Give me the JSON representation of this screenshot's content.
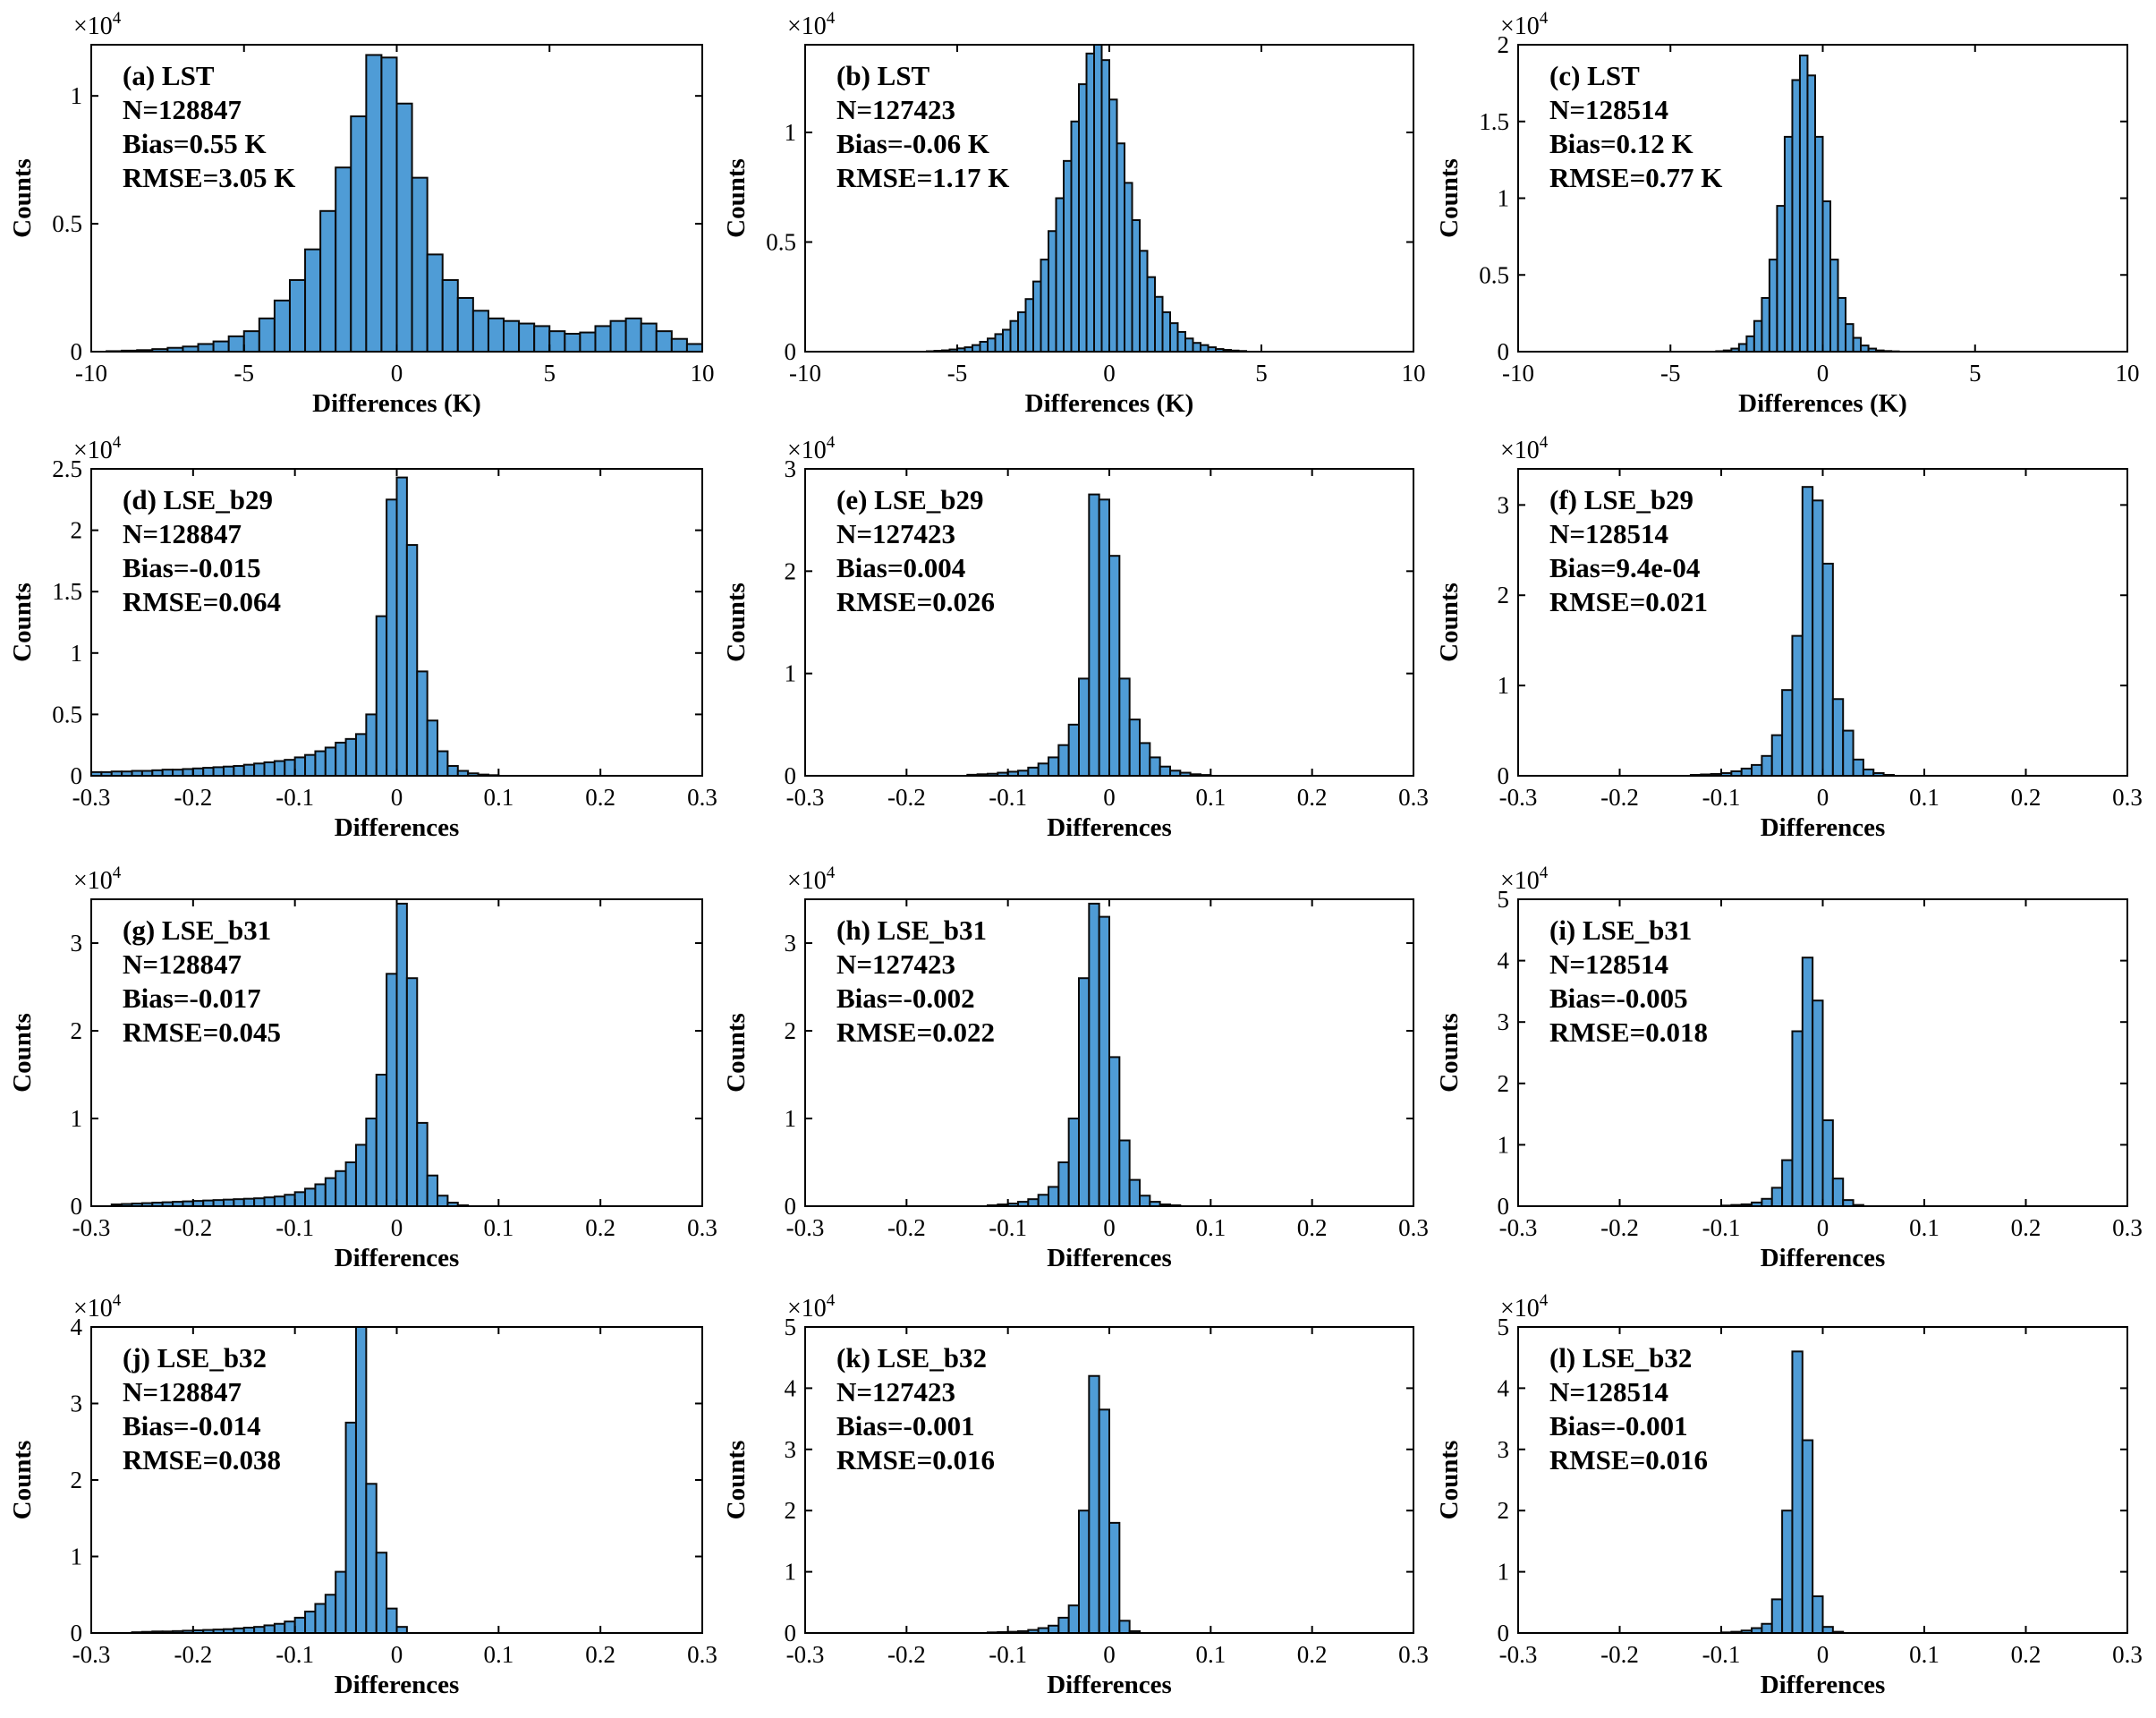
{
  "figure": {
    "background": "#ffffff",
    "bar_color": "#4f9cd6",
    "edge_color": "#0a0a0a"
  },
  "chart_data": [
    {
      "id": "a",
      "type": "bar",
      "ylabel": "Counts",
      "xlabel": "Differences (K)",
      "multiplier": "×10",
      "multiplier_exp": "4",
      "xlim": [
        -10,
        10
      ],
      "ylim": [
        0,
        1.2
      ],
      "xticks": [
        -10,
        -5,
        0,
        5,
        10
      ],
      "xtick_labels": [
        "-10",
        "-5",
        "0",
        "5",
        "10"
      ],
      "yticks": [
        0,
        0.5,
        1
      ],
      "ytick_labels": [
        "0",
        "0.5",
        "1"
      ],
      "bin_start": -9.5,
      "bin_width": 0.5,
      "annotation": [
        "(a) LST",
        "N=128847",
        "Bias=0.55 K",
        "RMSE=3.05 K"
      ],
      "values": [
        0.002,
        0.004,
        0.006,
        0.01,
        0.015,
        0.02,
        0.03,
        0.04,
        0.06,
        0.08,
        0.13,
        0.2,
        0.28,
        0.4,
        0.55,
        0.72,
        0.92,
        1.16,
        1.15,
        0.97,
        0.68,
        0.38,
        0.28,
        0.21,
        0.16,
        0.13,
        0.12,
        0.11,
        0.1,
        0.08,
        0.07,
        0.075,
        0.1,
        0.12,
        0.13,
        0.11,
        0.08,
        0.05,
        0.03
      ]
    },
    {
      "id": "b",
      "type": "bar",
      "ylabel": "Counts",
      "xlabel": "Differences (K)",
      "multiplier": "×10",
      "multiplier_exp": "4",
      "xlim": [
        -10,
        10
      ],
      "ylim": [
        0,
        1.4
      ],
      "xticks": [
        -10,
        -5,
        0,
        5,
        10
      ],
      "xtick_labels": [
        "-10",
        "-5",
        "0",
        "5",
        "10"
      ],
      "yticks": [
        0,
        0.5,
        1
      ],
      "ytick_labels": [
        "0",
        "0.5",
        "1"
      ],
      "bin_start": -6,
      "bin_width": 0.25,
      "annotation": [
        "(b) LST",
        "N=127423",
        "Bias=-0.06 K",
        "RMSE=1.17 K"
      ],
      "values": [
        0.002,
        0.004,
        0.006,
        0.01,
        0.015,
        0.02,
        0.03,
        0.045,
        0.06,
        0.08,
        0.1,
        0.14,
        0.18,
        0.24,
        0.32,
        0.42,
        0.55,
        0.7,
        0.87,
        1.05,
        1.22,
        1.36,
        1.4,
        1.33,
        1.15,
        0.95,
        0.77,
        0.6,
        0.46,
        0.34,
        0.25,
        0.18,
        0.13,
        0.09,
        0.06,
        0.04,
        0.03,
        0.02,
        0.012,
        0.008,
        0.005,
        0.003
      ]
    },
    {
      "id": "c",
      "type": "bar",
      "ylabel": "Counts",
      "xlabel": "Differences (K)",
      "multiplier": "×10",
      "multiplier_exp": "4",
      "xlim": [
        -10,
        10
      ],
      "ylim": [
        0,
        2
      ],
      "xticks": [
        -10,
        -5,
        0,
        5,
        10
      ],
      "xtick_labels": [
        "-10",
        "-5",
        "0",
        "5",
        "10"
      ],
      "yticks": [
        0,
        0.5,
        1,
        1.5,
        2
      ],
      "ytick_labels": [
        "0",
        "0.5",
        "1",
        "1.5",
        "2"
      ],
      "bin_start": -3.5,
      "bin_width": 0.25,
      "annotation": [
        "(c) LST",
        "N=128514",
        "Bias=0.12 K",
        "RMSE=0.77 K"
      ],
      "values": [
        0.003,
        0.008,
        0.02,
        0.05,
        0.1,
        0.2,
        0.35,
        0.6,
        0.95,
        1.4,
        1.77,
        1.93,
        1.8,
        1.4,
        0.98,
        0.6,
        0.35,
        0.18,
        0.09,
        0.04,
        0.02,
        0.008,
        0.004,
        0.002
      ]
    },
    {
      "id": "d",
      "type": "bar",
      "ylabel": "Counts",
      "xlabel": "Differences",
      "multiplier": "×10",
      "multiplier_exp": "4",
      "xlim": [
        -0.3,
        0.3
      ],
      "ylim": [
        0,
        2.5
      ],
      "xticks": [
        -0.3,
        -0.2,
        -0.1,
        0,
        0.1,
        0.2,
        0.3
      ],
      "xtick_labels": [
        "-0.3",
        "-0.2",
        "-0.1",
        "0",
        "0.1",
        "0.2",
        "0.3"
      ],
      "yticks": [
        0,
        0.5,
        1,
        1.5,
        2,
        2.5
      ],
      "ytick_labels": [
        "0",
        "0.5",
        "1",
        "1.5",
        "2",
        "2.5"
      ],
      "bin_start": -0.3,
      "bin_width": 0.01,
      "annotation": [
        "(d) LSE_b29",
        "N=128847",
        "Bias=-0.015",
        "RMSE=0.064"
      ],
      "values": [
        0.03,
        0.03,
        0.035,
        0.035,
        0.04,
        0.04,
        0.045,
        0.05,
        0.05,
        0.055,
        0.06,
        0.065,
        0.07,
        0.075,
        0.08,
        0.09,
        0.1,
        0.11,
        0.12,
        0.13,
        0.15,
        0.17,
        0.2,
        0.23,
        0.27,
        0.3,
        0.34,
        0.5,
        1.3,
        2.25,
        2.43,
        1.88,
        0.85,
        0.45,
        0.2,
        0.08,
        0.04,
        0.02,
        0.01,
        0.005
      ]
    },
    {
      "id": "e",
      "type": "bar",
      "ylabel": "Counts",
      "xlabel": "Differences",
      "multiplier": "×10",
      "multiplier_exp": "4",
      "xlim": [
        -0.3,
        0.3
      ],
      "ylim": [
        0,
        3
      ],
      "xticks": [
        -0.3,
        -0.2,
        -0.1,
        0,
        0.1,
        0.2,
        0.3
      ],
      "xtick_labels": [
        "-0.3",
        "-0.2",
        "-0.1",
        "0",
        "0.1",
        "0.2",
        "0.3"
      ],
      "yticks": [
        0,
        1,
        2,
        3
      ],
      "ytick_labels": [
        "0",
        "1",
        "2",
        "3"
      ],
      "bin_start": -0.14,
      "bin_width": 0.01,
      "annotation": [
        "(e) LSE_b29",
        "N=127423",
        "Bias=0.004",
        "RMSE=0.026"
      ],
      "values": [
        0.01,
        0.015,
        0.02,
        0.03,
        0.04,
        0.05,
        0.08,
        0.12,
        0.18,
        0.3,
        0.5,
        0.95,
        2.75,
        2.7,
        2.15,
        0.95,
        0.55,
        0.32,
        0.18,
        0.09,
        0.05,
        0.03,
        0.015,
        0.008
      ]
    },
    {
      "id": "f",
      "type": "bar",
      "ylabel": "Counts",
      "xlabel": "Differences",
      "multiplier": "×10",
      "multiplier_exp": "4",
      "xlim": [
        -0.3,
        0.3
      ],
      "ylim": [
        0,
        3.4
      ],
      "xticks": [
        -0.3,
        -0.2,
        -0.1,
        0,
        0.1,
        0.2,
        0.3
      ],
      "xtick_labels": [
        "-0.3",
        "-0.2",
        "-0.1",
        "0",
        "0.1",
        "0.2",
        "0.3"
      ],
      "yticks": [
        0,
        1,
        2,
        3
      ],
      "ytick_labels": [
        "0",
        "1",
        "2",
        "3"
      ],
      "bin_start": -0.13,
      "bin_width": 0.01,
      "annotation": [
        "(f) LSE_b29",
        "N=128514",
        "Bias=9.4e-04",
        "RMSE=0.021"
      ],
      "values": [
        0.01,
        0.015,
        0.02,
        0.03,
        0.05,
        0.08,
        0.12,
        0.22,
        0.45,
        0.95,
        1.55,
        3.2,
        3.05,
        2.35,
        0.85,
        0.5,
        0.18,
        0.07,
        0.03,
        0.01
      ]
    },
    {
      "id": "g",
      "type": "bar",
      "ylabel": "Counts",
      "xlabel": "Differences",
      "multiplier": "×10",
      "multiplier_exp": "4",
      "xlim": [
        -0.3,
        0.3
      ],
      "ylim": [
        0,
        3.5
      ],
      "xticks": [
        -0.3,
        -0.2,
        -0.1,
        0,
        0.1,
        0.2,
        0.3
      ],
      "xtick_labels": [
        "-0.3",
        "-0.2",
        "-0.1",
        "0",
        "0.1",
        "0.2",
        "0.3"
      ],
      "yticks": [
        0,
        1,
        2,
        3
      ],
      "ytick_labels": [
        "0",
        "1",
        "2",
        "3"
      ],
      "bin_start": -0.28,
      "bin_width": 0.01,
      "annotation": [
        "(g) LSE_b31",
        "N=128847",
        "Bias=-0.017",
        "RMSE=0.045"
      ],
      "values": [
        0.02,
        0.025,
        0.03,
        0.035,
        0.04,
        0.045,
        0.05,
        0.055,
        0.06,
        0.065,
        0.07,
        0.075,
        0.08,
        0.085,
        0.09,
        0.1,
        0.11,
        0.13,
        0.16,
        0.2,
        0.25,
        0.32,
        0.4,
        0.5,
        0.7,
        1.0,
        1.5,
        2.65,
        3.45,
        2.6,
        0.95,
        0.35,
        0.12,
        0.04,
        0.01
      ]
    },
    {
      "id": "h",
      "type": "bar",
      "ylabel": "Counts",
      "xlabel": "Differences",
      "multiplier": "×10",
      "multiplier_exp": "4",
      "xlim": [
        -0.3,
        0.3
      ],
      "ylim": [
        0,
        3.5
      ],
      "xticks": [
        -0.3,
        -0.2,
        -0.1,
        0,
        0.1,
        0.2,
        0.3
      ],
      "xtick_labels": [
        "-0.3",
        "-0.2",
        "-0.1",
        "0",
        "0.1",
        "0.2",
        "0.3"
      ],
      "yticks": [
        0,
        1,
        2,
        3
      ],
      "ytick_labels": [
        "0",
        "1",
        "2",
        "3"
      ],
      "bin_start": -0.12,
      "bin_width": 0.01,
      "annotation": [
        "(h) LSE_b31",
        "N=127423",
        "Bias=-0.002",
        "RMSE=0.022"
      ],
      "values": [
        0.01,
        0.02,
        0.03,
        0.05,
        0.08,
        0.13,
        0.22,
        0.5,
        1.0,
        2.6,
        3.45,
        3.3,
        1.7,
        0.75,
        0.3,
        0.12,
        0.05,
        0.02,
        0.01
      ]
    },
    {
      "id": "i",
      "type": "bar",
      "ylabel": "Counts",
      "xlabel": "Differences",
      "multiplier": "×10",
      "multiplier_exp": "4",
      "xlim": [
        -0.3,
        0.3
      ],
      "ylim": [
        0,
        5
      ],
      "xticks": [
        -0.3,
        -0.2,
        -0.1,
        0,
        0.1,
        0.2,
        0.3
      ],
      "xtick_labels": [
        "-0.3",
        "-0.2",
        "-0.1",
        "0",
        "0.1",
        "0.2",
        "0.3"
      ],
      "yticks": [
        0,
        1,
        2,
        3,
        4,
        5
      ],
      "ytick_labels": [
        "0",
        "1",
        "2",
        "3",
        "4",
        "5"
      ],
      "bin_start": -0.1,
      "bin_width": 0.01,
      "annotation": [
        "(i) LSE_b31",
        "N=128514",
        "Bias=-0.005",
        "RMSE=0.018"
      ],
      "values": [
        0.01,
        0.02,
        0.03,
        0.06,
        0.12,
        0.3,
        0.75,
        2.85,
        4.05,
        3.35,
        1.4,
        0.45,
        0.1,
        0.02
      ]
    },
    {
      "id": "j",
      "type": "bar",
      "ylabel": "Counts",
      "xlabel": "Differences",
      "multiplier": "×10",
      "multiplier_exp": "4",
      "xlim": [
        -0.3,
        0.3
      ],
      "ylim": [
        0,
        4
      ],
      "xticks": [
        -0.3,
        -0.2,
        -0.1,
        0,
        0.1,
        0.2,
        0.3
      ],
      "xtick_labels": [
        "-0.3",
        "-0.2",
        "-0.1",
        "0",
        "0.1",
        "0.2",
        "0.3"
      ],
      "yticks": [
        0,
        1,
        2,
        3,
        4
      ],
      "ytick_labels": [
        "0",
        "1",
        "2",
        "3",
        "4"
      ],
      "bin_start": -0.26,
      "bin_width": 0.01,
      "annotation": [
        "(j) LSE_b32",
        "N=128847",
        "Bias=-0.014",
        "RMSE=0.038"
      ],
      "values": [
        0.01,
        0.015,
        0.02,
        0.02,
        0.025,
        0.03,
        0.035,
        0.04,
        0.045,
        0.05,
        0.06,
        0.07,
        0.08,
        0.1,
        0.12,
        0.15,
        0.2,
        0.28,
        0.38,
        0.5,
        0.8,
        2.75,
        4.05,
        1.95,
        1.05,
        0.32,
        0.08
      ]
    },
    {
      "id": "k",
      "type": "bar",
      "ylabel": "Counts",
      "xlabel": "Differences",
      "multiplier": "×10",
      "multiplier_exp": "4",
      "xlim": [
        -0.3,
        0.3
      ],
      "ylim": [
        0,
        5
      ],
      "xticks": [
        -0.3,
        -0.2,
        -0.1,
        0,
        0.1,
        0.2,
        0.3
      ],
      "xtick_labels": [
        "-0.3",
        "-0.2",
        "-0.1",
        "0",
        "0.1",
        "0.2",
        "0.3"
      ],
      "yticks": [
        0,
        1,
        2,
        3,
        4,
        5
      ],
      "ytick_labels": [
        "0",
        "1",
        "2",
        "3",
        "4",
        "5"
      ],
      "bin_start": -0.12,
      "bin_width": 0.01,
      "annotation": [
        "(k) LSE_b32",
        "N=127423",
        "Bias=-0.001",
        "RMSE=0.016"
      ],
      "values": [
        0.01,
        0.015,
        0.02,
        0.03,
        0.05,
        0.08,
        0.12,
        0.25,
        0.45,
        2.0,
        4.2,
        3.65,
        1.8,
        0.2,
        0.03
      ]
    },
    {
      "id": "l",
      "type": "bar",
      "ylabel": "Counts",
      "xlabel": "Differences",
      "multiplier": "×10",
      "multiplier_exp": "4",
      "xlim": [
        -0.3,
        0.3
      ],
      "ylim": [
        0,
        5
      ],
      "xticks": [
        -0.3,
        -0.2,
        -0.1,
        0,
        0.1,
        0.2,
        0.3
      ],
      "xtick_labels": [
        "-0.3",
        "-0.2",
        "-0.1",
        "0",
        "0.1",
        "0.2",
        "0.3"
      ],
      "yticks": [
        0,
        1,
        2,
        3,
        4,
        5
      ],
      "ytick_labels": [
        "0",
        "1",
        "2",
        "3",
        "4",
        "5"
      ],
      "bin_start": -0.1,
      "bin_width": 0.01,
      "annotation": [
        "(l) LSE_b32",
        "N=128514",
        "Bias=-0.001",
        "RMSE=0.016"
      ],
      "values": [
        0.01,
        0.02,
        0.04,
        0.08,
        0.15,
        0.55,
        2.0,
        4.6,
        3.15,
        0.6,
        0.1,
        0.02
      ]
    }
  ]
}
